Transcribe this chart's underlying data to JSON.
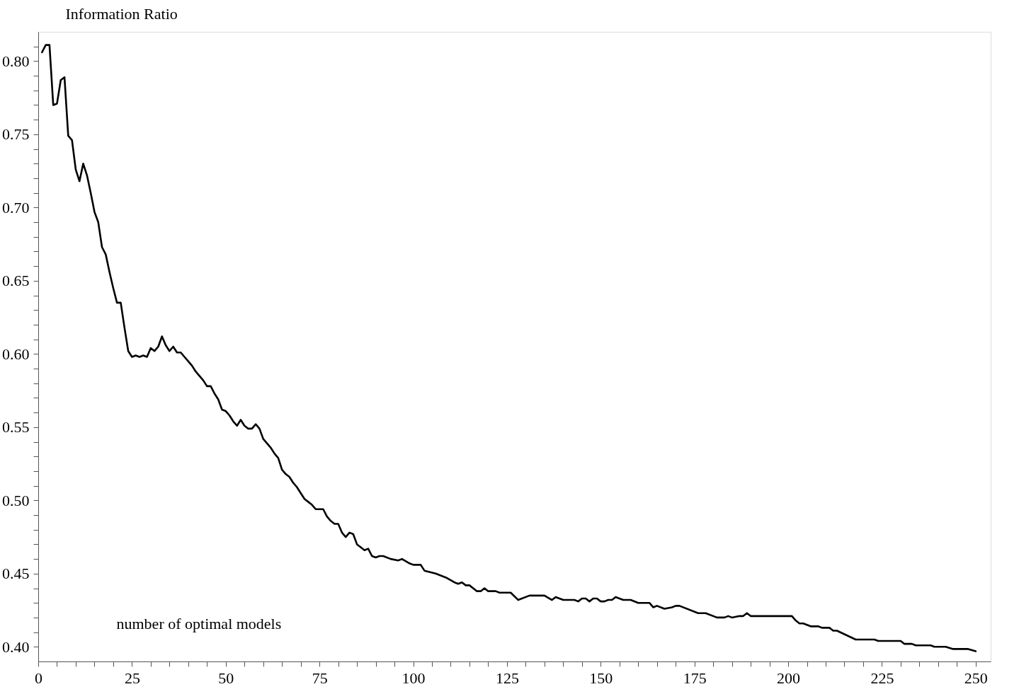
{
  "chart_data": {
    "type": "line",
    "xlabel": "number of optimal models",
    "ylabel": "Information Ratio",
    "xlim": [
      0,
      254
    ],
    "ylim": [
      0.39,
      0.82
    ],
    "xticks": [
      0,
      {
        "value": 5,
        "label": null
      },
      {
        "value": 10,
        "label": null
      },
      {
        "value": 15,
        "label": null
      },
      {
        "value": 20,
        "label": null
      },
      25,
      {
        "value": 30,
        "label": null
      },
      {
        "value": 35,
        "label": null
      },
      {
        "value": 40,
        "label": null
      },
      {
        "value": 45,
        "label": null
      },
      50,
      {
        "value": 55,
        "label": null
      },
      {
        "value": 60,
        "label": null
      },
      {
        "value": 65,
        "label": null
      },
      {
        "value": 70,
        "label": null
      },
      75,
      {
        "value": 80,
        "label": null
      },
      {
        "value": 85,
        "label": null
      },
      {
        "value": 90,
        "label": null
      },
      {
        "value": 95,
        "label": null
      },
      100,
      {
        "value": 105,
        "label": null
      },
      {
        "value": 110,
        "label": null
      },
      {
        "value": 115,
        "label": null
      },
      {
        "value": 120,
        "label": null
      },
      125,
      {
        "value": 130,
        "label": null
      },
      {
        "value": 135,
        "label": null
      },
      {
        "value": 140,
        "label": null
      },
      {
        "value": 145,
        "label": null
      },
      150,
      {
        "value": 155,
        "label": null
      },
      {
        "value": 160,
        "label": null
      },
      {
        "value": 165,
        "label": null
      },
      {
        "value": 170,
        "label": null
      },
      175,
      {
        "value": 180,
        "label": null
      },
      {
        "value": 185,
        "label": null
      },
      {
        "value": 190,
        "label": null
      },
      {
        "value": 195,
        "label": null
      },
      200,
      {
        "value": 205,
        "label": null
      },
      {
        "value": 210,
        "label": null
      },
      {
        "value": 215,
        "label": null
      },
      {
        "value": 220,
        "label": null
      },
      225,
      {
        "value": 230,
        "label": null
      },
      {
        "value": 235,
        "label": null
      },
      {
        "value": 240,
        "label": null
      },
      {
        "value": 245,
        "label": null
      },
      250
    ],
    "yticks": [
      {
        "value": 0.4,
        "label": "0.40"
      },
      {
        "value": 0.41,
        "label": null
      },
      {
        "value": 0.42,
        "label": null
      },
      {
        "value": 0.43,
        "label": null
      },
      {
        "value": 0.44,
        "label": null
      },
      {
        "value": 0.45,
        "label": "0.45"
      },
      {
        "value": 0.46,
        "label": null
      },
      {
        "value": 0.47,
        "label": null
      },
      {
        "value": 0.48,
        "label": null
      },
      {
        "value": 0.49,
        "label": null
      },
      {
        "value": 0.5,
        "label": "0.50"
      },
      {
        "value": 0.51,
        "label": null
      },
      {
        "value": 0.52,
        "label": null
      },
      {
        "value": 0.53,
        "label": null
      },
      {
        "value": 0.54,
        "label": null
      },
      {
        "value": 0.55,
        "label": "0.55"
      },
      {
        "value": 0.56,
        "label": null
      },
      {
        "value": 0.57,
        "label": null
      },
      {
        "value": 0.58,
        "label": null
      },
      {
        "value": 0.59,
        "label": null
      },
      {
        "value": 0.6,
        "label": "0.60"
      },
      {
        "value": 0.61,
        "label": null
      },
      {
        "value": 0.62,
        "label": null
      },
      {
        "value": 0.63,
        "label": null
      },
      {
        "value": 0.64,
        "label": null
      },
      {
        "value": 0.65,
        "label": "0.65"
      },
      {
        "value": 0.66,
        "label": null
      },
      {
        "value": 0.67,
        "label": null
      },
      {
        "value": 0.68,
        "label": null
      },
      {
        "value": 0.69,
        "label": null
      },
      {
        "value": 0.7,
        "label": "0.70"
      },
      {
        "value": 0.71,
        "label": null
      },
      {
        "value": 0.72,
        "label": null
      },
      {
        "value": 0.73,
        "label": null
      },
      {
        "value": 0.74,
        "label": null
      },
      {
        "value": 0.75,
        "label": "0.75"
      },
      {
        "value": 0.76,
        "label": null
      },
      {
        "value": 0.77,
        "label": null
      },
      {
        "value": 0.78,
        "label": null
      },
      {
        "value": 0.79,
        "label": null
      },
      {
        "value": 0.8,
        "label": "0.80"
      },
      {
        "value": 0.81,
        "label": null
      }
    ],
    "grid": false,
    "legend": false,
    "marker": "none",
    "line_style": "solid",
    "series": [
      {
        "color": "#000000",
        "x": [
          1,
          2,
          3,
          4,
          5,
          6,
          7,
          8,
          9,
          10,
          11,
          12,
          13,
          14,
          15,
          16,
          17,
          18,
          19,
          20,
          21,
          22,
          23,
          24,
          25,
          26,
          27,
          28,
          29,
          30,
          31,
          32,
          33,
          34,
          35,
          36,
          37,
          38,
          39,
          40,
          41,
          42,
          43,
          44,
          45,
          46,
          47,
          48,
          49,
          50,
          51,
          52,
          53,
          54,
          55,
          56,
          57,
          58,
          59,
          60,
          61,
          62,
          63,
          64,
          65,
          66,
          67,
          68,
          69,
          70,
          71,
          72,
          73,
          74,
          75,
          76,
          77,
          78,
          79,
          80,
          81,
          82,
          83,
          84,
          85,
          86,
          87,
          88,
          89,
          90,
          91,
          92,
          94,
          96,
          97,
          99,
          100,
          102,
          103,
          106,
          109,
          111,
          112,
          113,
          114,
          115,
          117,
          118,
          119,
          120,
          122,
          123,
          126,
          128,
          131,
          135,
          137,
          138,
          139,
          140,
          143,
          144,
          145,
          146,
          147,
          148,
          149,
          150,
          151,
          152,
          153,
          154,
          156,
          158,
          160,
          163,
          164,
          165,
          167,
          169,
          170,
          171,
          176,
          178,
          181,
          183,
          184,
          185,
          187,
          188,
          189,
          190,
          201,
          202,
          203,
          204,
          206,
          208,
          209,
          211,
          212,
          213,
          218,
          223,
          224,
          230,
          231,
          233,
          234,
          238,
          239,
          242,
          244,
          248,
          250
        ],
        "values": [
          0.806,
          0.811,
          0.811,
          0.77,
          0.771,
          0.787,
          0.789,
          0.749,
          0.746,
          0.726,
          0.718,
          0.73,
          0.722,
          0.71,
          0.697,
          0.69,
          0.673,
          0.668,
          0.656,
          0.645,
          0.635,
          0.635,
          0.618,
          0.602,
          0.598,
          0.599,
          0.598,
          0.599,
          0.598,
          0.604,
          0.602,
          0.605,
          0.612,
          0.606,
          0.602,
          0.605,
          0.601,
          0.601,
          0.598,
          0.595,
          0.592,
          0.588,
          0.585,
          0.582,
          0.578,
          0.578,
          0.573,
          0.569,
          0.562,
          0.561,
          0.558,
          0.554,
          0.551,
          0.555,
          0.551,
          0.549,
          0.549,
          0.552,
          0.549,
          0.542,
          0.539,
          0.536,
          0.532,
          0.529,
          0.521,
          0.518,
          0.516,
          0.512,
          0.509,
          0.505,
          0.501,
          0.499,
          0.497,
          0.494,
          0.494,
          0.494,
          0.489,
          0.486,
          0.484,
          0.484,
          0.478,
          0.475,
          0.478,
          0.477,
          0.47,
          0.468,
          0.466,
          0.467,
          0.462,
          0.461,
          0.462,
          0.462,
          0.46,
          0.459,
          0.46,
          0.457,
          0.456,
          0.456,
          0.452,
          0.45,
          0.447,
          0.444,
          0.443,
          0.444,
          0.442,
          0.442,
          0.438,
          0.438,
          0.44,
          0.438,
          0.438,
          0.437,
          0.437,
          0.432,
          0.435,
          0.435,
          0.432,
          0.434,
          0.433,
          0.432,
          0.432,
          0.431,
          0.433,
          0.433,
          0.431,
          0.433,
          0.433,
          0.431,
          0.431,
          0.432,
          0.432,
          0.434,
          0.432,
          0.432,
          0.43,
          0.43,
          0.427,
          0.428,
          0.426,
          0.427,
          0.428,
          0.428,
          0.423,
          0.423,
          0.42,
          0.42,
          0.421,
          0.42,
          0.421,
          0.421,
          0.423,
          0.421,
          0.421,
          0.418,
          0.416,
          0.416,
          0.414,
          0.414,
          0.413,
          0.413,
          0.411,
          0.411,
          0.405,
          0.405,
          0.404,
          0.404,
          0.402,
          0.402,
          0.401,
          0.401,
          0.4,
          0.4,
          0.3985,
          0.3985,
          0.397
        ]
      }
    ]
  }
}
